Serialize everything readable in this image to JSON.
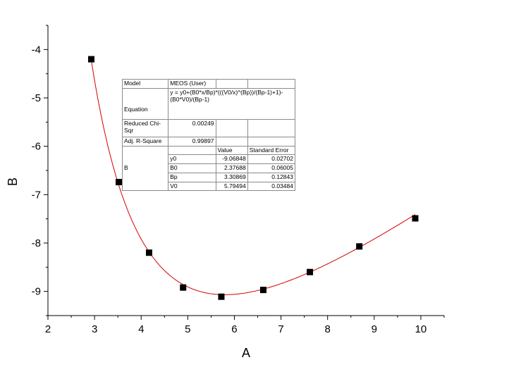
{
  "chart_data": {
    "type": "scatter",
    "xlabel": "A",
    "ylabel": "B",
    "xlim": [
      2,
      10.5
    ],
    "ylim": [
      -9.5,
      -3.5
    ],
    "xticks": [
      2,
      3,
      4,
      5,
      6,
      7,
      8,
      9,
      10
    ],
    "yticks": [
      -9,
      -8,
      -7,
      -6,
      -5,
      -4
    ],
    "grid": false,
    "points": {
      "x": [
        2.93,
        3.52,
        4.17,
        4.9,
        5.72,
        6.62,
        7.62,
        8.68,
        9.88
      ],
      "y": [
        -4.2,
        -6.74,
        -8.2,
        -8.92,
        -9.11,
        -8.97,
        -8.6,
        -8.07,
        -7.49
      ]
    },
    "fit": {
      "model": "MEOS",
      "params": {
        "y0": -9.06848,
        "B0": 2.37688,
        "Bp": 3.30869,
        "V0": 5.79494
      },
      "color": "#d40000"
    },
    "marker_color": "#000000"
  },
  "fit_table": {
    "model_label": "Model",
    "model_value": "MEOS (User)",
    "equation_label": "Equation",
    "equation_value": "y = y0+(B0*x/Bp)*(((V0/x)^(Bp))/(Bp-1)+1)-(B0*V0)/(Bp-1)",
    "chisqr_label": "Reduced Chi-Sqr",
    "chisqr_value": "0.00249",
    "adjr_label": "Adj. R-Square",
    "adjr_value": "0.99897",
    "value_header": "Value",
    "stderr_header": "Standard Error",
    "group_label": "B",
    "rows": [
      {
        "param": "y0",
        "value": "-9.06848",
        "error": "0.02702"
      },
      {
        "param": "B0",
        "value": "2.37688",
        "error": "0.06005"
      },
      {
        "param": "Bp",
        "value": "3.30869",
        "error": "0.12843"
      },
      {
        "param": "V0",
        "value": "5.79494",
        "error": "0.03484"
      }
    ]
  }
}
